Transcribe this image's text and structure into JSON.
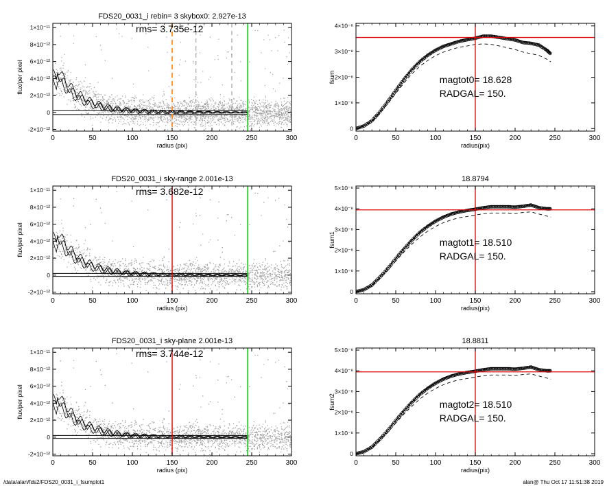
{
  "footer": {
    "path": "/data/alan/fds2/FDS20_0031_i_fsumplot1",
    "stamp": "alan@  Thu Oct 17 11:51:38 2019"
  },
  "colors": {
    "profile": "#000000",
    "scatter": "#9e9e9e",
    "cut_line_red": "#dd0000",
    "cut_line_orange": "#ff8c1a",
    "outer_green": "#22cc22",
    "skybox_dash": "#777777"
  },
  "chart_data": [
    {
      "type": "scatter",
      "title": "FDS20_0031_i rebin= 3    skybox0:  2.927e-13",
      "annotation": "rms= 3.735e-12",
      "xlabel": "radius (pix)",
      "ylabel": "flux/per pixel",
      "xlim": [
        0,
        300
      ],
      "ylim": [
        -2.2e-12,
        1.05e-11
      ],
      "xticks": [
        0,
        50,
        100,
        150,
        200,
        250,
        300
      ],
      "yticks": [
        {
          "v": 1e-11,
          "label": "1×10⁻¹¹"
        },
        {
          "v": 8e-12,
          "label": "8×10⁻¹²"
        },
        {
          "v": 6e-12,
          "label": "6×10⁻¹²"
        },
        {
          "v": 4e-12,
          "label": "4×10⁻¹²"
        },
        {
          "v": 2e-12,
          "label": "2×10⁻¹²"
        },
        {
          "v": 0,
          "label": "0"
        },
        {
          "v": -2e-12,
          "label": "-2×10⁻¹²"
        }
      ],
      "vlines": [
        {
          "x": 150,
          "style": "orange-dash"
        },
        {
          "x": 180,
          "style": "grey-dash"
        },
        {
          "x": 225,
          "style": "grey-dash"
        },
        {
          "x": 245,
          "style": "green"
        }
      ],
      "hlines": [
        -2.5e-13,
        2.5e-13
      ]
    },
    {
      "type": "line",
      "title": "",
      "xlabel": "radius(pix)",
      "ylabel": "fsum",
      "xlim": [
        0,
        300
      ],
      "ylim": [
        -1e-09,
        4.1e-08
      ],
      "xticks": [
        0,
        50,
        100,
        150,
        200,
        250,
        300
      ],
      "yticks": [
        {
          "v": 0,
          "label": "0"
        },
        {
          "v": 1e-08,
          "label": "1×10⁻⁸"
        },
        {
          "v": 2e-08,
          "label": "2×10⁻⁸"
        },
        {
          "v": 3e-08,
          "label": "3×10⁻⁸"
        },
        {
          "v": 4e-08,
          "label": "4×10⁻⁸"
        }
      ],
      "annotations": [
        "magtot0=  18.628",
        "RADGAL=    150."
      ],
      "hline": 3.55e-08,
      "vline": 150,
      "x": [
        0,
        10,
        20,
        30,
        40,
        50,
        60,
        70,
        80,
        90,
        100,
        110,
        120,
        130,
        140,
        150,
        160,
        170,
        180,
        190,
        200,
        210,
        220,
        230,
        240,
        245
      ],
      "y": [
        0,
        1e-09,
        3e-09,
        6.5e-09,
        1.05e-08,
        1.48e-08,
        1.9e-08,
        2.28e-08,
        2.6e-08,
        2.85e-08,
        3.05e-08,
        3.2e-08,
        3.3e-08,
        3.4e-08,
        3.46e-08,
        3.52e-08,
        3.6e-08,
        3.6e-08,
        3.55e-08,
        3.5e-08,
        3.45e-08,
        3.35e-08,
        3.32e-08,
        3.25e-08,
        3.05e-08,
        2.9e-08
      ],
      "y_low": [
        0,
        9e-10,
        2.7e-09,
        6e-09,
        9.7e-09,
        1.37e-08,
        1.76e-08,
        2.12e-08,
        2.42e-08,
        2.65e-08,
        2.84e-08,
        2.98e-08,
        3.08e-08,
        3.17e-08,
        3.22e-08,
        3.28e-08,
        3.3e-08,
        3.28e-08,
        3.22e-08,
        3.15e-08,
        3.08e-08,
        2.98e-08,
        2.92e-08,
        2.85e-08,
        2.7e-08,
        2.6e-08
      ]
    },
    {
      "type": "scatter",
      "title": "FDS20_0031_i sky-range  2.001e-13",
      "annotation": "rms= 3.682e-12",
      "xlabel": "radius (pix)",
      "ylabel": "flux/per pixel",
      "xlim": [
        0,
        300
      ],
      "ylim": [
        -2.2e-12,
        1.05e-11
      ],
      "xticks": [
        0,
        50,
        100,
        150,
        200,
        250,
        300
      ],
      "yticks": [
        {
          "v": 1e-11,
          "label": "1×10⁻¹¹"
        },
        {
          "v": 8e-12,
          "label": "8×10⁻¹²"
        },
        {
          "v": 6e-12,
          "label": "6×10⁻¹²"
        },
        {
          "v": 4e-12,
          "label": "4×10⁻¹²"
        },
        {
          "v": 2e-12,
          "label": "2×10⁻¹²"
        },
        {
          "v": 0,
          "label": "0"
        },
        {
          "v": -2e-12,
          "label": "-2×10⁻¹²"
        }
      ],
      "vlines": [
        {
          "x": 150,
          "style": "red"
        },
        {
          "x": 245,
          "style": "green"
        }
      ],
      "hlines": [
        -1.5e-13,
        2e-13
      ]
    },
    {
      "type": "line",
      "title": "18.8794",
      "xlabel": "radius(pix)",
      "ylabel": "fsum1",
      "xlim": [
        0,
        300
      ],
      "ylim": [
        -1e-09,
        5.1e-08
      ],
      "xticks": [
        0,
        50,
        100,
        150,
        200,
        250,
        300
      ],
      "yticks": [
        {
          "v": 0,
          "label": "0"
        },
        {
          "v": 1e-08,
          "label": "1×10⁻⁸"
        },
        {
          "v": 2e-08,
          "label": "2×10⁻⁸"
        },
        {
          "v": 3e-08,
          "label": "3×10⁻⁸"
        },
        {
          "v": 4e-08,
          "label": "4×10⁻⁸"
        },
        {
          "v": 5e-08,
          "label": "5×10⁻⁸"
        }
      ],
      "annotations": [
        "magtot1=  18.510",
        "RADGAL=    150."
      ],
      "hline": 3.95e-08,
      "vline": 150,
      "x": [
        0,
        10,
        20,
        30,
        40,
        50,
        60,
        70,
        80,
        90,
        100,
        110,
        120,
        130,
        140,
        150,
        160,
        170,
        180,
        190,
        200,
        210,
        220,
        230,
        240,
        245
      ],
      "y": [
        0,
        1e-09,
        3.2e-09,
        7e-09,
        1.12e-08,
        1.6e-08,
        2.05e-08,
        2.47e-08,
        2.85e-08,
        3.15e-08,
        3.4e-08,
        3.6e-08,
        3.75e-08,
        3.85e-08,
        3.92e-08,
        3.98e-08,
        4.05e-08,
        4.1e-08,
        4.1e-08,
        4.1e-08,
        4.08e-08,
        4.12e-08,
        4.18e-08,
        4.05e-08,
        4e-08,
        4e-08
      ],
      "y_low": [
        0,
        9e-10,
        2.9e-09,
        6.4e-09,
        1.03e-08,
        1.48e-08,
        1.9e-08,
        2.28e-08,
        2.63e-08,
        2.92e-08,
        3.15e-08,
        3.33e-08,
        3.47e-08,
        3.57e-08,
        3.63e-08,
        3.7e-08,
        3.76e-08,
        3.8e-08,
        3.8e-08,
        3.8e-08,
        3.78e-08,
        3.82e-08,
        3.85e-08,
        3.75e-08,
        3.65e-08,
        3.6e-08
      ]
    },
    {
      "type": "scatter",
      "title": "FDS20_0031_i sky-plane  2.001e-13",
      "annotation": "rms= 3.744e-12",
      "xlabel": "radius (pix)",
      "ylabel": "flux/per pixel",
      "xlim": [
        0,
        300
      ],
      "ylim": [
        -2.2e-12,
        1.05e-11
      ],
      "xticks": [
        0,
        50,
        100,
        150,
        200,
        250,
        300
      ],
      "yticks": [
        {
          "v": 1e-11,
          "label": "1×10⁻¹¹"
        },
        {
          "v": 8e-12,
          "label": "8×10⁻¹²"
        },
        {
          "v": 6e-12,
          "label": "6×10⁻¹²"
        },
        {
          "v": 4e-12,
          "label": "4×10⁻¹²"
        },
        {
          "v": 2e-12,
          "label": "2×10⁻¹²"
        },
        {
          "v": 0,
          "label": "0"
        },
        {
          "v": -2e-12,
          "label": "-2×10⁻¹²"
        }
      ],
      "vlines": [
        {
          "x": 150,
          "style": "red"
        },
        {
          "x": 245,
          "style": "green"
        }
      ],
      "hlines": [
        -1.5e-13,
        2e-13
      ]
    },
    {
      "type": "line",
      "title": "18.8811",
      "xlabel": "radius(pix)",
      "ylabel": "fsum2",
      "xlim": [
        0,
        300
      ],
      "ylim": [
        -1e-09,
        5.1e-08
      ],
      "xticks": [
        0,
        50,
        100,
        150,
        200,
        250,
        300
      ],
      "yticks": [
        {
          "v": 0,
          "label": "0"
        },
        {
          "v": 1e-08,
          "label": "1×10⁻⁸"
        },
        {
          "v": 2e-08,
          "label": "2×10⁻⁸"
        },
        {
          "v": 3e-08,
          "label": "3×10⁻⁸"
        },
        {
          "v": 4e-08,
          "label": "4×10⁻⁸"
        },
        {
          "v": 5e-08,
          "label": "5×10⁻⁸"
        }
      ],
      "annotations": [
        "magtot2=  18.510",
        "RADGAL=    150."
      ],
      "hline": 3.95e-08,
      "vline": 150,
      "x": [
        0,
        10,
        20,
        30,
        40,
        50,
        60,
        70,
        80,
        90,
        100,
        110,
        120,
        130,
        140,
        150,
        160,
        170,
        180,
        190,
        200,
        210,
        220,
        230,
        240,
        245
      ],
      "y": [
        0,
        1e-09,
        3.2e-09,
        7e-09,
        1.12e-08,
        1.6e-08,
        2.05e-08,
        2.47e-08,
        2.85e-08,
        3.15e-08,
        3.4e-08,
        3.6e-08,
        3.75e-08,
        3.85e-08,
        3.92e-08,
        3.98e-08,
        4.05e-08,
        4.1e-08,
        4.1e-08,
        4.1e-08,
        4.08e-08,
        4.12e-08,
        4.18e-08,
        4.05e-08,
        4e-08,
        4e-08
      ],
      "y_low": [
        0,
        9e-10,
        2.9e-09,
        6.4e-09,
        1.03e-08,
        1.48e-08,
        1.9e-08,
        2.28e-08,
        2.63e-08,
        2.92e-08,
        3.15e-08,
        3.33e-08,
        3.47e-08,
        3.57e-08,
        3.63e-08,
        3.7e-08,
        3.76e-08,
        3.8e-08,
        3.8e-08,
        3.8e-08,
        3.78e-08,
        3.82e-08,
        3.85e-08,
        3.75e-08,
        3.65e-08,
        3.6e-08
      ]
    }
  ]
}
